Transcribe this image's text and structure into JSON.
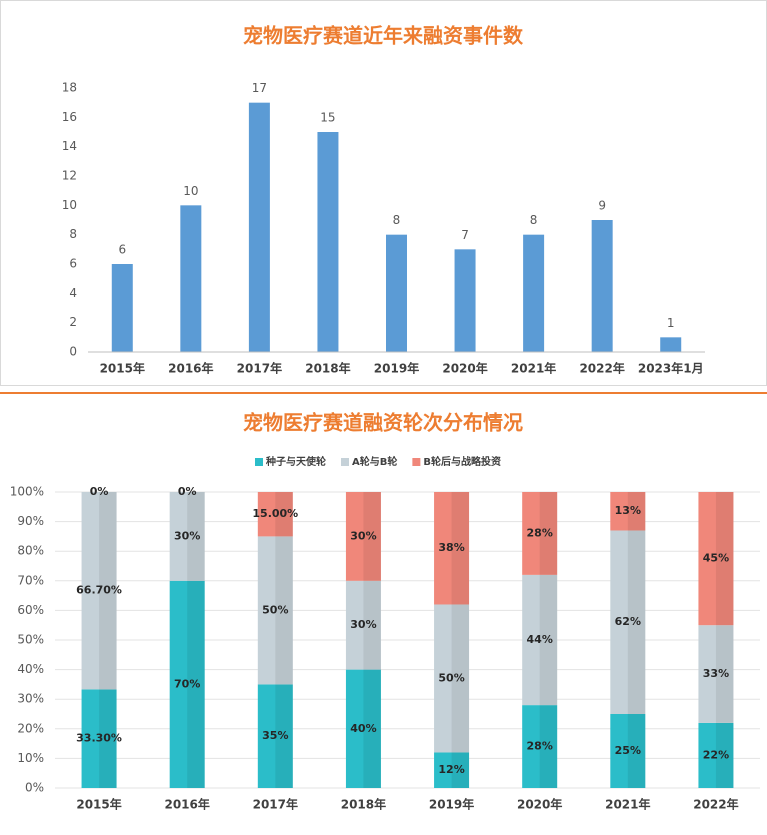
{
  "chart_data": [
    {
      "type": "bar",
      "title": "宠物医疗赛道近年来融资事件数",
      "categories": [
        "2015年",
        "2016年",
        "2017年",
        "2018年",
        "2019年",
        "2020年",
        "2021年",
        "2022年",
        "2023年1月"
      ],
      "values": [
        6,
        10,
        17,
        15,
        8,
        7,
        8,
        9,
        1
      ],
      "color": "#5b9bd5",
      "ylim": [
        0,
        18
      ],
      "yticks": [
        0,
        2,
        4,
        6,
        8,
        10,
        12,
        14,
        16,
        18
      ],
      "grid": false
    },
    {
      "type": "stacked_bar",
      "title": "宠物医疗赛道融资轮次分布情况",
      "categories": [
        "2015年",
        "2016年",
        "2017年",
        "2018年",
        "2019年",
        "2020年",
        "2021年",
        "2022年"
      ],
      "series": [
        {
          "name": "种子与天使轮",
          "color": "#2bbdc9",
          "values": [
            33.3,
            70,
            35,
            40,
            12,
            28,
            25,
            22
          ],
          "value_labels": [
            "33.30%",
            "70%",
            "35%",
            "40%",
            "12%",
            "28%",
            "25%",
            "22%"
          ]
        },
        {
          "name": "A轮与B轮",
          "color": "#c5d1d8",
          "values": [
            66.7,
            30,
            50,
            30,
            50,
            44,
            62,
            33
          ],
          "value_labels": [
            "66.70%",
            "30%",
            "50%",
            "30%",
            "50%",
            "44%",
            "62%",
            "33%"
          ]
        },
        {
          "name": "B轮后与战略投资",
          "color": "#f0877a",
          "values": [
            0,
            0,
            15,
            30,
            38,
            28,
            13,
            45
          ],
          "value_labels": [
            "0%",
            "0%",
            "15.00%",
            "30%",
            "38%",
            "28%",
            "13%",
            "45%"
          ]
        }
      ],
      "ylim": [
        0,
        100
      ],
      "yticks": [
        {
          "value": 0,
          "label": "0%"
        },
        {
          "value": 10,
          "label": "10%"
        },
        {
          "value": 20,
          "label": "20%"
        },
        {
          "value": 30,
          "label": "30%"
        },
        {
          "value": 40,
          "label": "40%"
        },
        {
          "value": 50,
          "label": "50%"
        },
        {
          "value": 60,
          "label": "60%"
        },
        {
          "value": 70,
          "label": "70%"
        },
        {
          "value": 80,
          "label": "80%"
        },
        {
          "value": 90,
          "label": "90%"
        },
        {
          "value": 100,
          "label": "100%"
        }
      ],
      "grid": true,
      "legend": "top"
    }
  ]
}
